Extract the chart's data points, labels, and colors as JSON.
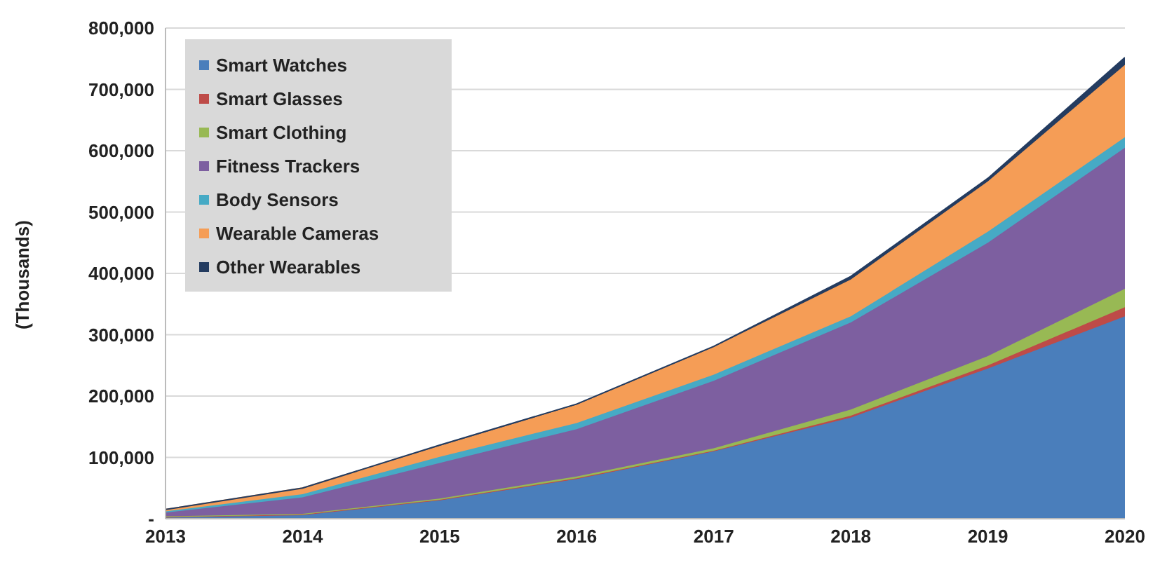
{
  "chart_data": {
    "type": "area",
    "stacked": true,
    "ylabel": "(Thousands)",
    "categories": [
      "2013",
      "2014",
      "2015",
      "2016",
      "2017",
      "2018",
      "2019",
      "2020"
    ],
    "series": [
      {
        "name": "Smart Watches",
        "color": "#4a7ebb",
        "values": [
          3000,
          7000,
          30000,
          65000,
          110000,
          165000,
          245000,
          330000
        ]
      },
      {
        "name": "Smart Glasses",
        "color": "#be4b48",
        "values": [
          0,
          0,
          1000,
          1000,
          1000,
          3000,
          5000,
          15000
        ]
      },
      {
        "name": "Smart Clothing",
        "color": "#98b954",
        "values": [
          1000,
          1000,
          2000,
          3000,
          4000,
          10000,
          15000,
          30000
        ]
      },
      {
        "name": "Fitness Trackers",
        "color": "#7d5fa0",
        "values": [
          6000,
          27000,
          58000,
          77000,
          110000,
          142000,
          185000,
          230000
        ]
      },
      {
        "name": "Body Sensors",
        "color": "#46aac5",
        "values": [
          2000,
          5000,
          10000,
          10000,
          10000,
          10000,
          18000,
          17000
        ]
      },
      {
        "name": "Wearable Cameras",
        "color": "#f59d56",
        "values": [
          3000,
          10000,
          18000,
          30000,
          45000,
          60000,
          82000,
          118000
        ]
      },
      {
        "name": "Other Wearables",
        "color": "#243c60",
        "values": [
          0,
          0,
          1000,
          1000,
          1000,
          5000,
          5000,
          12000
        ]
      }
    ],
    "ylim": [
      0,
      800000
    ],
    "yticks": [
      {
        "value": 0,
        "label": "-"
      },
      {
        "value": 100000,
        "label": "100,000"
      },
      {
        "value": 200000,
        "label": "200,000"
      },
      {
        "value": 300000,
        "label": "300,000"
      },
      {
        "value": 400000,
        "label": "400,000"
      },
      {
        "value": 500000,
        "label": "500,000"
      },
      {
        "value": 600000,
        "label": "600,000"
      },
      {
        "value": 700000,
        "label": "700,000"
      },
      {
        "value": 800000,
        "label": "800,000"
      }
    ],
    "grid": "y",
    "legend": "top left"
  }
}
